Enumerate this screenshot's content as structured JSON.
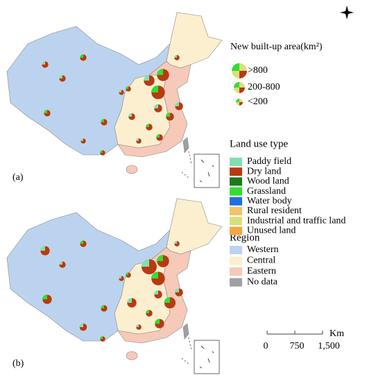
{
  "panels": [
    {
      "label": "(a)"
    },
    {
      "label": "(b)"
    }
  ],
  "legend": {
    "size": {
      "title": "New built-up area(km²)",
      "items": [
        ">800",
        "200-800",
        "<200"
      ]
    },
    "land_use": {
      "title": "Land use type",
      "items": [
        {
          "label": "Paddy field",
          "color": "#7fe0b0"
        },
        {
          "label": "Dry land",
          "color": "#b83a10"
        },
        {
          "label": "Wood land",
          "color": "#1a7a1a"
        },
        {
          "label": "Grassland",
          "color": "#33dd33"
        },
        {
          "label": "Water body",
          "color": "#1f6fe0"
        },
        {
          "label": "Rural resident",
          "color": "#f2c36b"
        },
        {
          "label": "Industrial and traffic land",
          "color": "#d8e07a"
        },
        {
          "label": "Unused land",
          "color": "#f5a640"
        }
      ]
    },
    "region": {
      "title": "Region",
      "items": [
        {
          "label": "Western",
          "color": "#bcd3ef"
        },
        {
          "label": "Central",
          "color": "#fbefcf"
        },
        {
          "label": "Eastern",
          "color": "#f6c9b9"
        },
        {
          "label": "No data",
          "color": "#a0a0a0"
        }
      ]
    }
  },
  "scale_bar": {
    "unit": "Km",
    "labels": [
      "0",
      "750",
      "1,500"
    ]
  }
}
